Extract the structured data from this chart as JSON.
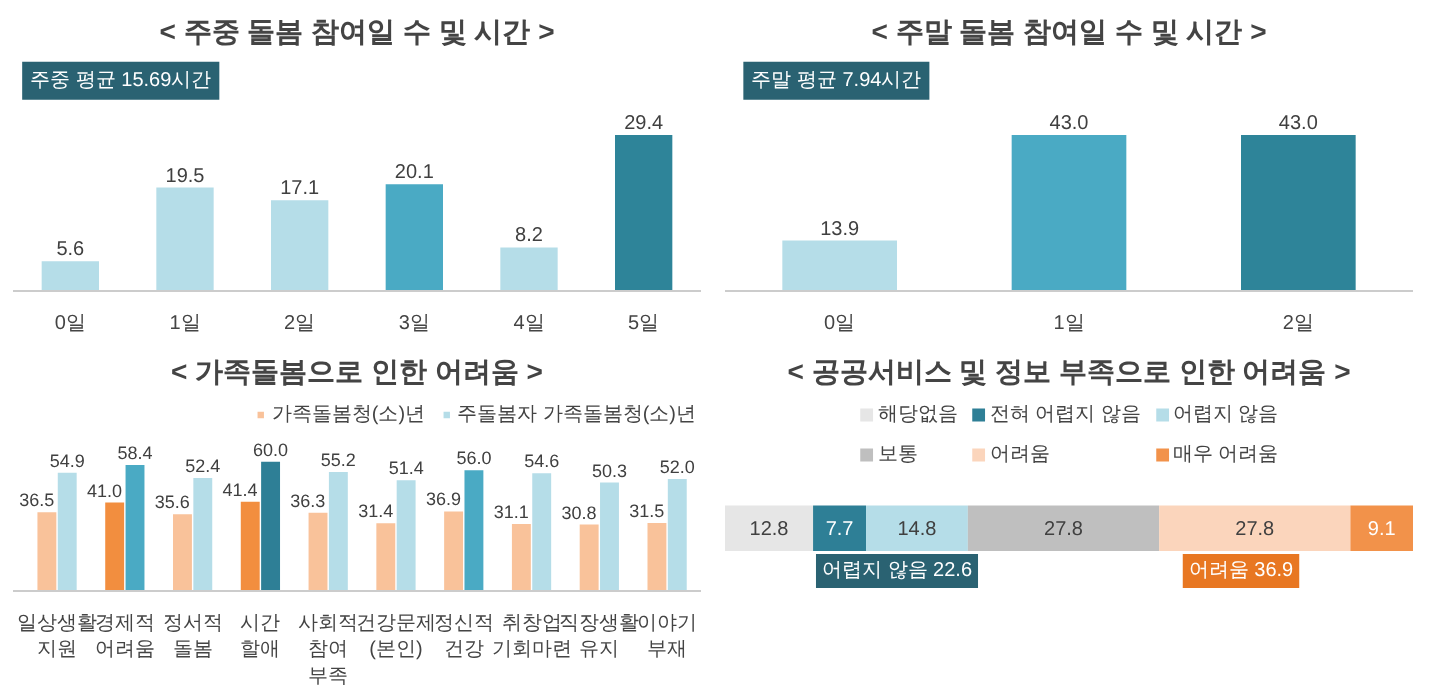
{
  "chart_data": [
    {
      "type": "bar",
      "title": "< 주중 돌봄 참여일 수 및 시간 >",
      "annotations": [
        "주중 평균 15.69시간"
      ],
      "categories": [
        "0일",
        "1일",
        "2일",
        "3일",
        "4일",
        "5일"
      ],
      "values": [
        5.6,
        19.5,
        17.1,
        20.1,
        8.2,
        29.4
      ],
      "colors": [
        "#b5dde8",
        "#b5dde8",
        "#b5dde8",
        "#4aaac4",
        "#b5dde8",
        "#2e8499"
      ],
      "data_labels": true
    },
    {
      "type": "bar",
      "title": "< 주말 돌봄 참여일 수 및 시간 >",
      "annotations": [
        "주말 평균 7.94시간"
      ],
      "categories": [
        "0일",
        "1일",
        "2일"
      ],
      "values": [
        13.9,
        43.0,
        43.0
      ],
      "value_labels": [
        "13.9",
        "43.0",
        "43.0"
      ],
      "colors": [
        "#b5dde8",
        "#4aaac4",
        "#2e8499"
      ],
      "data_labels": true
    },
    {
      "type": "bar",
      "title": "< 가족돌봄으로 인한 어려움 >",
      "categories": [
        "일상생활\n지원",
        "경제적\n어려움",
        "정서적\n돌봄",
        "시간\n할애",
        "사회적\n참여\n부족",
        "건강문제\n(본인)",
        "정신적\n건강",
        "취창업\n기회마련",
        "직장생활\n유지",
        "이야기\n부재"
      ],
      "legend": "top right",
      "data_labels": true,
      "series": [
        {
          "name": "가족돌봄청(소)년",
          "color": "#f9c29a",
          "colors": [
            "#f9c29a",
            "#f28e3f",
            "#f9c29a",
            "#f28e3f",
            "#f9c29a",
            "#f9c29a",
            "#f9c29a",
            "#f9c29a",
            "#f9c29a",
            "#f9c29a"
          ],
          "values": [
            36.5,
            41.0,
            35.6,
            41.4,
            36.3,
            31.4,
            36.9,
            31.1,
            30.8,
            31.5
          ],
          "value_labels": [
            "36.5",
            "41.0",
            "35.6",
            "41.4",
            "36.3",
            "31.4",
            "36.9",
            "31.1",
            "30.8",
            "31.5"
          ]
        },
        {
          "name": "주돌봄자 가족돌봄청(소)년",
          "color": "#b5dde8",
          "colors": [
            "#b5dde8",
            "#4aaac4",
            "#b5dde8",
            "#2e7f96",
            "#b5dde8",
            "#b5dde8",
            "#4aaac4",
            "#b5dde8",
            "#b5dde8",
            "#b5dde8"
          ],
          "values": [
            54.9,
            58.4,
            52.4,
            60.0,
            55.2,
            51.4,
            56.0,
            54.6,
            50.3,
            52.0
          ],
          "value_labels": [
            "54.9",
            "58.4",
            "52.4",
            "60.0",
            "55.2",
            "51.4",
            "56.0",
            "54.6",
            "50.3",
            "52.0"
          ]
        }
      ]
    },
    {
      "type": "bar",
      "orientation": "horizontal",
      "stacked": true,
      "title": "< 공공서비스 및 정보 부족으로 인한 어려움 >",
      "annotations": [
        "어렵지 않음 22.6",
        "어려움 36.9"
      ],
      "categories": [
        null
      ],
      "legend": "top",
      "data_labels": true,
      "series": [
        {
          "name": "해당없음",
          "color": "#e6e6e6",
          "values": [
            12.8
          ]
        },
        {
          "name": "전혀 어렵지 않음",
          "color": "#2e7f96",
          "values": [
            7.7
          ]
        },
        {
          "name": "어렵지 않음",
          "color": "#b5dde8",
          "values": [
            14.8
          ]
        },
        {
          "name": "보통",
          "color": "#bfbfbf",
          "values": [
            27.8
          ]
        },
        {
          "name": "어려움",
          "color": "#fbd5bc",
          "values": [
            27.8
          ]
        },
        {
          "name": "매우 어려움",
          "color": "#f2924a",
          "values": [
            9.1
          ]
        }
      ]
    }
  ]
}
